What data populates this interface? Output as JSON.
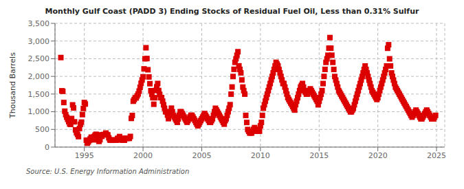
{
  "chart_data": {
    "type": "scatter",
    "title": "Monthly Gulf Coast (PADD 3) Ending Stocks of Residual Fuel Oil, Less than 0.31% Sulfur",
    "ylabel": "Thousand Barrels",
    "annotations": [
      "Source: U.S. Energy Information Administration"
    ],
    "color": "#dd0000",
    "marker": "square",
    "grid": true,
    "xlim": [
      1992.5,
      2025.7
    ],
    "xticks": [
      1995,
      2000,
      2005,
      2010,
      2015,
      2020,
      2025
    ],
    "ylim": [
      0,
      3500
    ],
    "yticks": [
      0,
      500,
      {
        "value": 1000,
        "label": "1,000"
      },
      {
        "value": 1500,
        "label": "1,500"
      },
      {
        "value": 2000,
        "label": "2,000"
      },
      {
        "value": 2500,
        "label": "2,500"
      },
      {
        "value": 3000,
        "label": "3,000"
      },
      {
        "value": 3500,
        "label": "3,500"
      }
    ],
    "x": [
      1993.0,
      1993.083,
      1993.167,
      1993.25,
      1993.333,
      1993.417,
      1993.5,
      1993.583,
      1993.667,
      1993.75,
      1993.833,
      1993.917,
      1994.0,
      1994.083,
      1994.167,
      1994.25,
      1994.333,
      1994.417,
      1994.5,
      1994.583,
      1994.667,
      1994.75,
      1994.833,
      1994.917,
      1995.0,
      1995.083,
      1995.167,
      1995.25,
      1995.333,
      1995.417,
      1995.5,
      1995.583,
      1995.667,
      1995.75,
      1995.833,
      1995.917,
      1996.0,
      1996.083,
      1996.167,
      1996.25,
      1996.333,
      1996.417,
      1996.5,
      1996.583,
      1996.667,
      1996.75,
      1996.833,
      1996.917,
      1997.0,
      1997.083,
      1997.167,
      1997.25,
      1997.333,
      1997.417,
      1997.5,
      1997.583,
      1997.667,
      1997.75,
      1997.833,
      1997.917,
      1998.0,
      1998.083,
      1998.167,
      1998.25,
      1998.333,
      1998.417,
      1998.5,
      1998.583,
      1998.667,
      1998.75,
      1998.833,
      1998.917,
      1999.0,
      1999.083,
      1999.167,
      1999.25,
      1999.333,
      1999.417,
      1999.5,
      1999.583,
      1999.667,
      1999.75,
      1999.833,
      1999.917,
      2000.0,
      2000.083,
      2000.167,
      2000.25,
      2000.333,
      2000.417,
      2000.5,
      2000.583,
      2000.667,
      2000.75,
      2000.833,
      2000.917,
      2001.0,
      2001.083,
      2001.167,
      2001.25,
      2001.333,
      2001.417,
      2001.5,
      2001.583,
      2001.667,
      2001.75,
      2001.833,
      2001.917,
      2002.0,
      2002.083,
      2002.167,
      2002.25,
      2002.333,
      2002.417,
      2002.5,
      2002.583,
      2002.667,
      2002.75,
      2002.833,
      2002.917,
      2003.0,
      2003.083,
      2003.167,
      2003.25,
      2003.333,
      2003.417,
      2003.5,
      2003.583,
      2003.667,
      2003.75,
      2003.833,
      2003.917,
      2004.0,
      2004.083,
      2004.167,
      2004.25,
      2004.333,
      2004.417,
      2004.5,
      2004.583,
      2004.667,
      2004.75,
      2004.833,
      2004.917,
      2005.0,
      2005.083,
      2005.167,
      2005.25,
      2005.333,
      2005.417,
      2005.5,
      2005.583,
      2005.667,
      2005.75,
      2005.833,
      2005.917,
      2006.0,
      2006.083,
      2006.167,
      2006.25,
      2006.333,
      2006.417,
      2006.5,
      2006.583,
      2006.667,
      2006.75,
      2006.833,
      2006.917,
      2007.0,
      2007.083,
      2007.167,
      2007.25,
      2007.333,
      2007.417,
      2007.5,
      2007.583,
      2007.667,
      2007.75,
      2007.833,
      2007.917,
      2008.0,
      2008.083,
      2008.167,
      2008.25,
      2008.333,
      2008.417,
      2008.5,
      2008.583,
      2008.667,
      2008.75,
      2008.833,
      2008.917,
      2009.0,
      2009.083,
      2009.167,
      2009.25,
      2009.333,
      2009.417,
      2009.5,
      2009.583,
      2009.667,
      2009.75,
      2009.833,
      2009.917,
      2010.0,
      2010.083,
      2010.167,
      2010.25,
      2010.333,
      2010.417,
      2010.5,
      2010.583,
      2010.667,
      2010.75,
      2010.833,
      2010.917,
      2011.0,
      2011.083,
      2011.167,
      2011.25,
      2011.333,
      2011.417,
      2011.5,
      2011.583,
      2011.667,
      2011.75,
      2011.833,
      2011.917,
      2012.0,
      2012.083,
      2012.167,
      2012.25,
      2012.333,
      2012.417,
      2012.5,
      2012.583,
      2012.667,
      2012.75,
      2012.833,
      2012.917,
      2013.0,
      2013.083,
      2013.167,
      2013.25,
      2013.333,
      2013.417,
      2013.5,
      2013.583,
      2013.667,
      2013.75,
      2013.833,
      2013.917,
      2014.0,
      2014.083,
      2014.167,
      2014.25,
      2014.333,
      2014.417,
      2014.5,
      2014.583,
      2014.667,
      2014.75,
      2014.833,
      2014.917,
      2015.0,
      2015.083,
      2015.167,
      2015.25,
      2015.333,
      2015.417,
      2015.5,
      2015.583,
      2015.667,
      2015.75,
      2015.833,
      2015.917,
      2016.0,
      2016.083,
      2016.167,
      2016.25,
      2016.333,
      2016.417,
      2016.5,
      2016.583,
      2016.667,
      2016.75,
      2016.833,
      2016.917,
      2017.0,
      2017.083,
      2017.167,
      2017.25,
      2017.333,
      2017.417,
      2017.5,
      2017.583,
      2017.667,
      2017.75,
      2017.833,
      2017.917,
      2018.0,
      2018.083,
      2018.167,
      2018.25,
      2018.333,
      2018.417,
      2018.5,
      2018.583,
      2018.667,
      2018.75,
      2018.833,
      2018.917,
      2019.0,
      2019.083,
      2019.167,
      2019.25,
      2019.333,
      2019.417,
      2019.5,
      2019.583,
      2019.667,
      2019.75,
      2019.833,
      2019.917,
      2020.0,
      2020.083,
      2020.167,
      2020.25,
      2020.333,
      2020.417,
      2020.5,
      2020.583,
      2020.667,
      2020.75,
      2020.833,
      2020.917,
      2021.0,
      2021.083,
      2021.167,
      2021.25,
      2021.333,
      2021.417,
      2021.5,
      2021.583,
      2021.667,
      2021.75,
      2021.833,
      2021.917,
      2022.0,
      2022.083,
      2022.167,
      2022.25,
      2022.333,
      2022.417,
      2022.5,
      2022.583,
      2022.667,
      2022.75,
      2022.833,
      2022.917,
      2023.0,
      2023.083,
      2023.167,
      2023.25,
      2023.333,
      2023.417,
      2023.5,
      2023.583,
      2023.667,
      2023.75,
      2023.833,
      2023.917,
      2024.0,
      2024.083,
      2024.167,
      2024.25,
      2024.333,
      2024.417,
      2024.5,
      2024.583,
      2024.667,
      2024.75,
      2024.833,
      2024.917
    ],
    "values": [
      2533,
      1592,
      1578,
      1261,
      1016,
      917,
      844,
      784,
      718,
      655,
      641,
      808,
      1194,
      1107,
      715,
      487,
      404,
      359,
      296,
      523,
      645,
      706,
      919,
      1093,
      1261,
      1218,
      196,
      109,
      146,
      188,
      231,
      281,
      241,
      205,
      298,
      338,
      362,
      303,
      207,
      161,
      208,
      345,
      304,
      348,
      356,
      353,
      397,
      354,
      343,
      263,
      203,
      194,
      193,
      196,
      204,
      195,
      196,
      197,
      245,
      248,
      298,
      248,
      207,
      196,
      196,
      196,
      252,
      249,
      248,
      250,
      247,
      301,
      811,
      894,
      1297,
      1345,
      1396,
      1392,
      1449,
      1502,
      1584,
      1692,
      1804,
      1899,
      1989,
      2213,
      2499,
      2810,
      2505,
      2188,
      1985,
      1794,
      1595,
      1494,
      1398,
      1212,
      1397,
      1602,
      1705,
      1799,
      1601,
      1494,
      1399,
      1399,
      1301,
      1197,
      1098,
      1001,
      997,
      904,
      804,
      898,
      998,
      1101,
      997,
      899,
      850,
      800,
      752,
      701,
      797,
      900,
      999,
      999,
      948,
      900,
      849,
      800,
      750,
      702,
      750,
      802,
      851,
      900,
      899,
      850,
      800,
      751,
      700,
      650,
      601,
      648,
      700,
      749,
      799,
      849,
      898,
      949,
      897,
      849,
      800,
      751,
      701,
      699,
      748,
      800,
      900,
      1001,
      1098,
      1050,
      1001,
      952,
      899,
      849,
      800,
      751,
      700,
      649,
      748,
      800,
      899,
      999,
      1100,
      1200,
      1497,
      1700,
      1997,
      2200,
      2398,
      2497,
      2597,
      2698,
      2298,
      2198,
      2100,
      1899,
      1698,
      1597,
      1498,
      896,
      697,
      497,
      448,
      399,
      398,
      399,
      449,
      499,
      551,
      498,
      449,
      449,
      449,
      449,
      600,
      700,
      897,
      1099,
      1197,
      1299,
      1398,
      1499,
      1598,
      1699,
      1798,
      1899,
      1997,
      2099,
      2197,
      2297,
      2398,
      2348,
      2297,
      2196,
      2098,
      1999,
      1900,
      1799,
      1799,
      1698,
      1597,
      1499,
      1398,
      1347,
      1297,
      1248,
      1198,
      1147,
      1097,
      1047,
      1199,
      1298,
      1397,
      1497,
      1598,
      1699,
      1748,
      1799,
      1697,
      1598,
      1548,
      1497,
      1498,
      1548,
      1599,
      1648,
      1598,
      1548,
      1497,
      1448,
      1399,
      1348,
      1297,
      1197,
      1296,
      1396,
      1497,
      1598,
      1797,
      1999,
      2198,
      2397,
      2497,
      2598,
      2798,
      3098,
      2798,
      2598,
      2397,
      2196,
      1998,
      1897,
      1797,
      1696,
      1598,
      1548,
      1498,
      1447,
      1397,
      1348,
      1297,
      1247,
      1196,
      1147,
      1097,
      1048,
      997,
      997,
      1047,
      1098,
      1197,
      1297,
      1397,
      1497,
      1597,
      1698,
      1797,
      1897,
      1995,
      2098,
      2196,
      2295,
      2196,
      2097,
      1997,
      1896,
      1797,
      1697,
      1597,
      1548,
      1498,
      1447,
      1396,
      1347,
      1396,
      1496,
      1598,
      1697,
      1797,
      1897,
      1996,
      2097,
      2196,
      2295,
      2796,
      2895,
      2497,
      2296,
      2098,
      1997,
      1896,
      1797,
      1697,
      1648,
      1597,
      1548,
      1497,
      1447,
      1396,
      1347,
      1296,
      1247,
      1196,
      1147,
      1097,
      1048,
      998,
      948,
      897,
      848,
      897,
      948,
      998,
      1047,
      997,
      948,
      898,
      847,
      798,
      797,
      848,
      899,
      947,
      998,
      1047,
      997,
      947,
      897,
      848,
      797,
      797,
      797,
      848,
      898
    ]
  }
}
